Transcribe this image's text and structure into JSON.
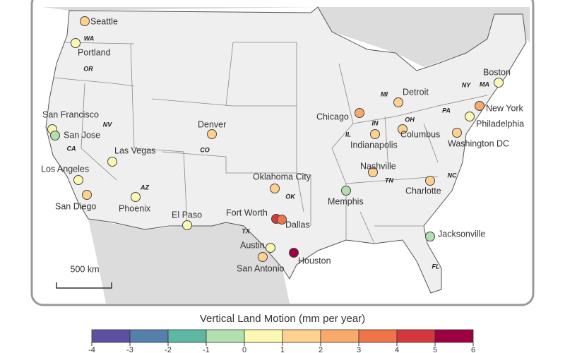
{
  "map": {
    "cities": [
      {
        "name": "Seattle",
        "value": 1.5
      },
      {
        "name": "Portland",
        "value": 0.5
      },
      {
        "name": "San Francisco",
        "value": 0.5
      },
      {
        "name": "San Jose",
        "value": -0.5
      },
      {
        "name": "Las Vegas",
        "value": 0.5
      },
      {
        "name": "Los Angeles",
        "value": 0.5
      },
      {
        "name": "San Diego",
        "value": 1.5
      },
      {
        "name": "Phoenix",
        "value": 0.5
      },
      {
        "name": "Denver",
        "value": 1.5
      },
      {
        "name": "El Paso",
        "value": 0.5
      },
      {
        "name": "Oklahoma City",
        "value": 1.5
      },
      {
        "name": "Fort Worth",
        "value": 4.5
      },
      {
        "name": "Dallas",
        "value": 3.5
      },
      {
        "name": "Austin",
        "value": 0.5
      },
      {
        "name": "San Antonio",
        "value": 1.5
      },
      {
        "name": "Houston",
        "value": 5.5
      },
      {
        "name": "Memphis",
        "value": -0.5
      },
      {
        "name": "Chicago",
        "value": 2.5
      },
      {
        "name": "Indianapolis",
        "value": 1.5
      },
      {
        "name": "Detroit",
        "value": 1.5
      },
      {
        "name": "Columbus",
        "value": 1.5
      },
      {
        "name": "Nashville",
        "value": 1.5
      },
      {
        "name": "Charlotte",
        "value": 1.5
      },
      {
        "name": "Jacksonville",
        "value": -0.5
      },
      {
        "name": "Boston",
        "value": 0.5
      },
      {
        "name": "New York",
        "value": 2.5
      },
      {
        "name": "Philadelphia",
        "value": 0.5
      },
      {
        "name": "Washington DC",
        "value": 1.5
      }
    ],
    "states": [
      "WA",
      "OR",
      "CA",
      "NV",
      "AZ",
      "CO",
      "TX",
      "OK",
      "IL",
      "IN",
      "MI",
      "OH",
      "PA",
      "NY",
      "MA",
      "NC",
      "TN",
      "FL"
    ],
    "scale_bar": "500 km",
    "colorbar": {
      "title": "Vertical Land Motion (mm per year)",
      "lim": [
        -4,
        6
      ],
      "ticks": [
        -4,
        -3,
        -2,
        -1,
        0,
        1,
        2,
        3,
        4,
        5,
        6
      ],
      "colors": [
        "#5e4fa2",
        "#5580ab",
        "#5cb8a3",
        "#b2dfae",
        "#fbf8b3",
        "#fdd28e",
        "#f9aa6b",
        "#ef7448",
        "#d6373f",
        "#9e0142"
      ]
    }
  }
}
